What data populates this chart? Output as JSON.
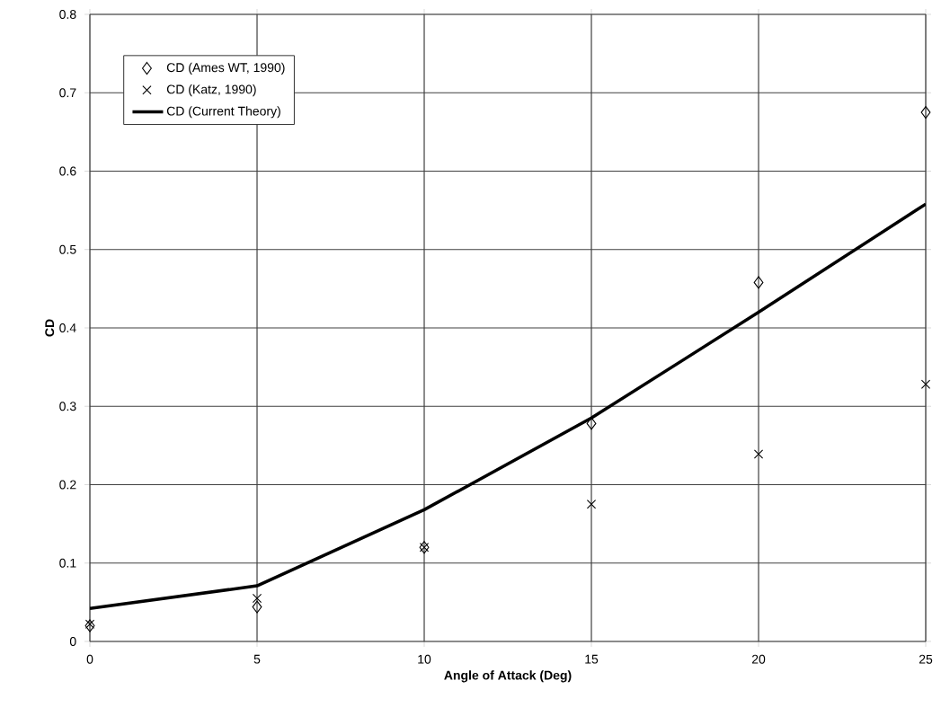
{
  "chart_data": {
    "type": "scatter",
    "xlabel": "Angle of Attack (Deg)",
    "ylabel": "CD",
    "x": [
      0,
      5,
      10,
      15,
      20,
      25
    ],
    "series": [
      {
        "name": "CD (Ames WT, 1990)",
        "marker": "diamond",
        "color": "#000000",
        "values": [
          0.02,
          0.044,
          0.12,
          0.278,
          0.458,
          0.675
        ]
      },
      {
        "name": "CD (Katz, 1990)",
        "marker": "cross",
        "color": "#000000",
        "values": [
          0.022,
          0.055,
          0.12,
          0.175,
          0.239,
          0.328
        ]
      },
      {
        "name": "CD (Current Theory)",
        "type": "line",
        "marker": "none",
        "line_style": "solid",
        "color": "#000000",
        "values": [
          0.042,
          0.071,
          0.168,
          0.285,
          0.42,
          0.558
        ]
      }
    ],
    "xlim": [
      0,
      25
    ],
    "ylim": [
      0,
      0.8
    ],
    "xticks": [
      0,
      5,
      10,
      15,
      20,
      25
    ],
    "yticks": [
      0,
      0.1,
      0.2,
      0.3,
      0.4,
      0.5,
      0.6,
      0.7,
      0.8
    ],
    "grid": true,
    "legend": "top left"
  }
}
